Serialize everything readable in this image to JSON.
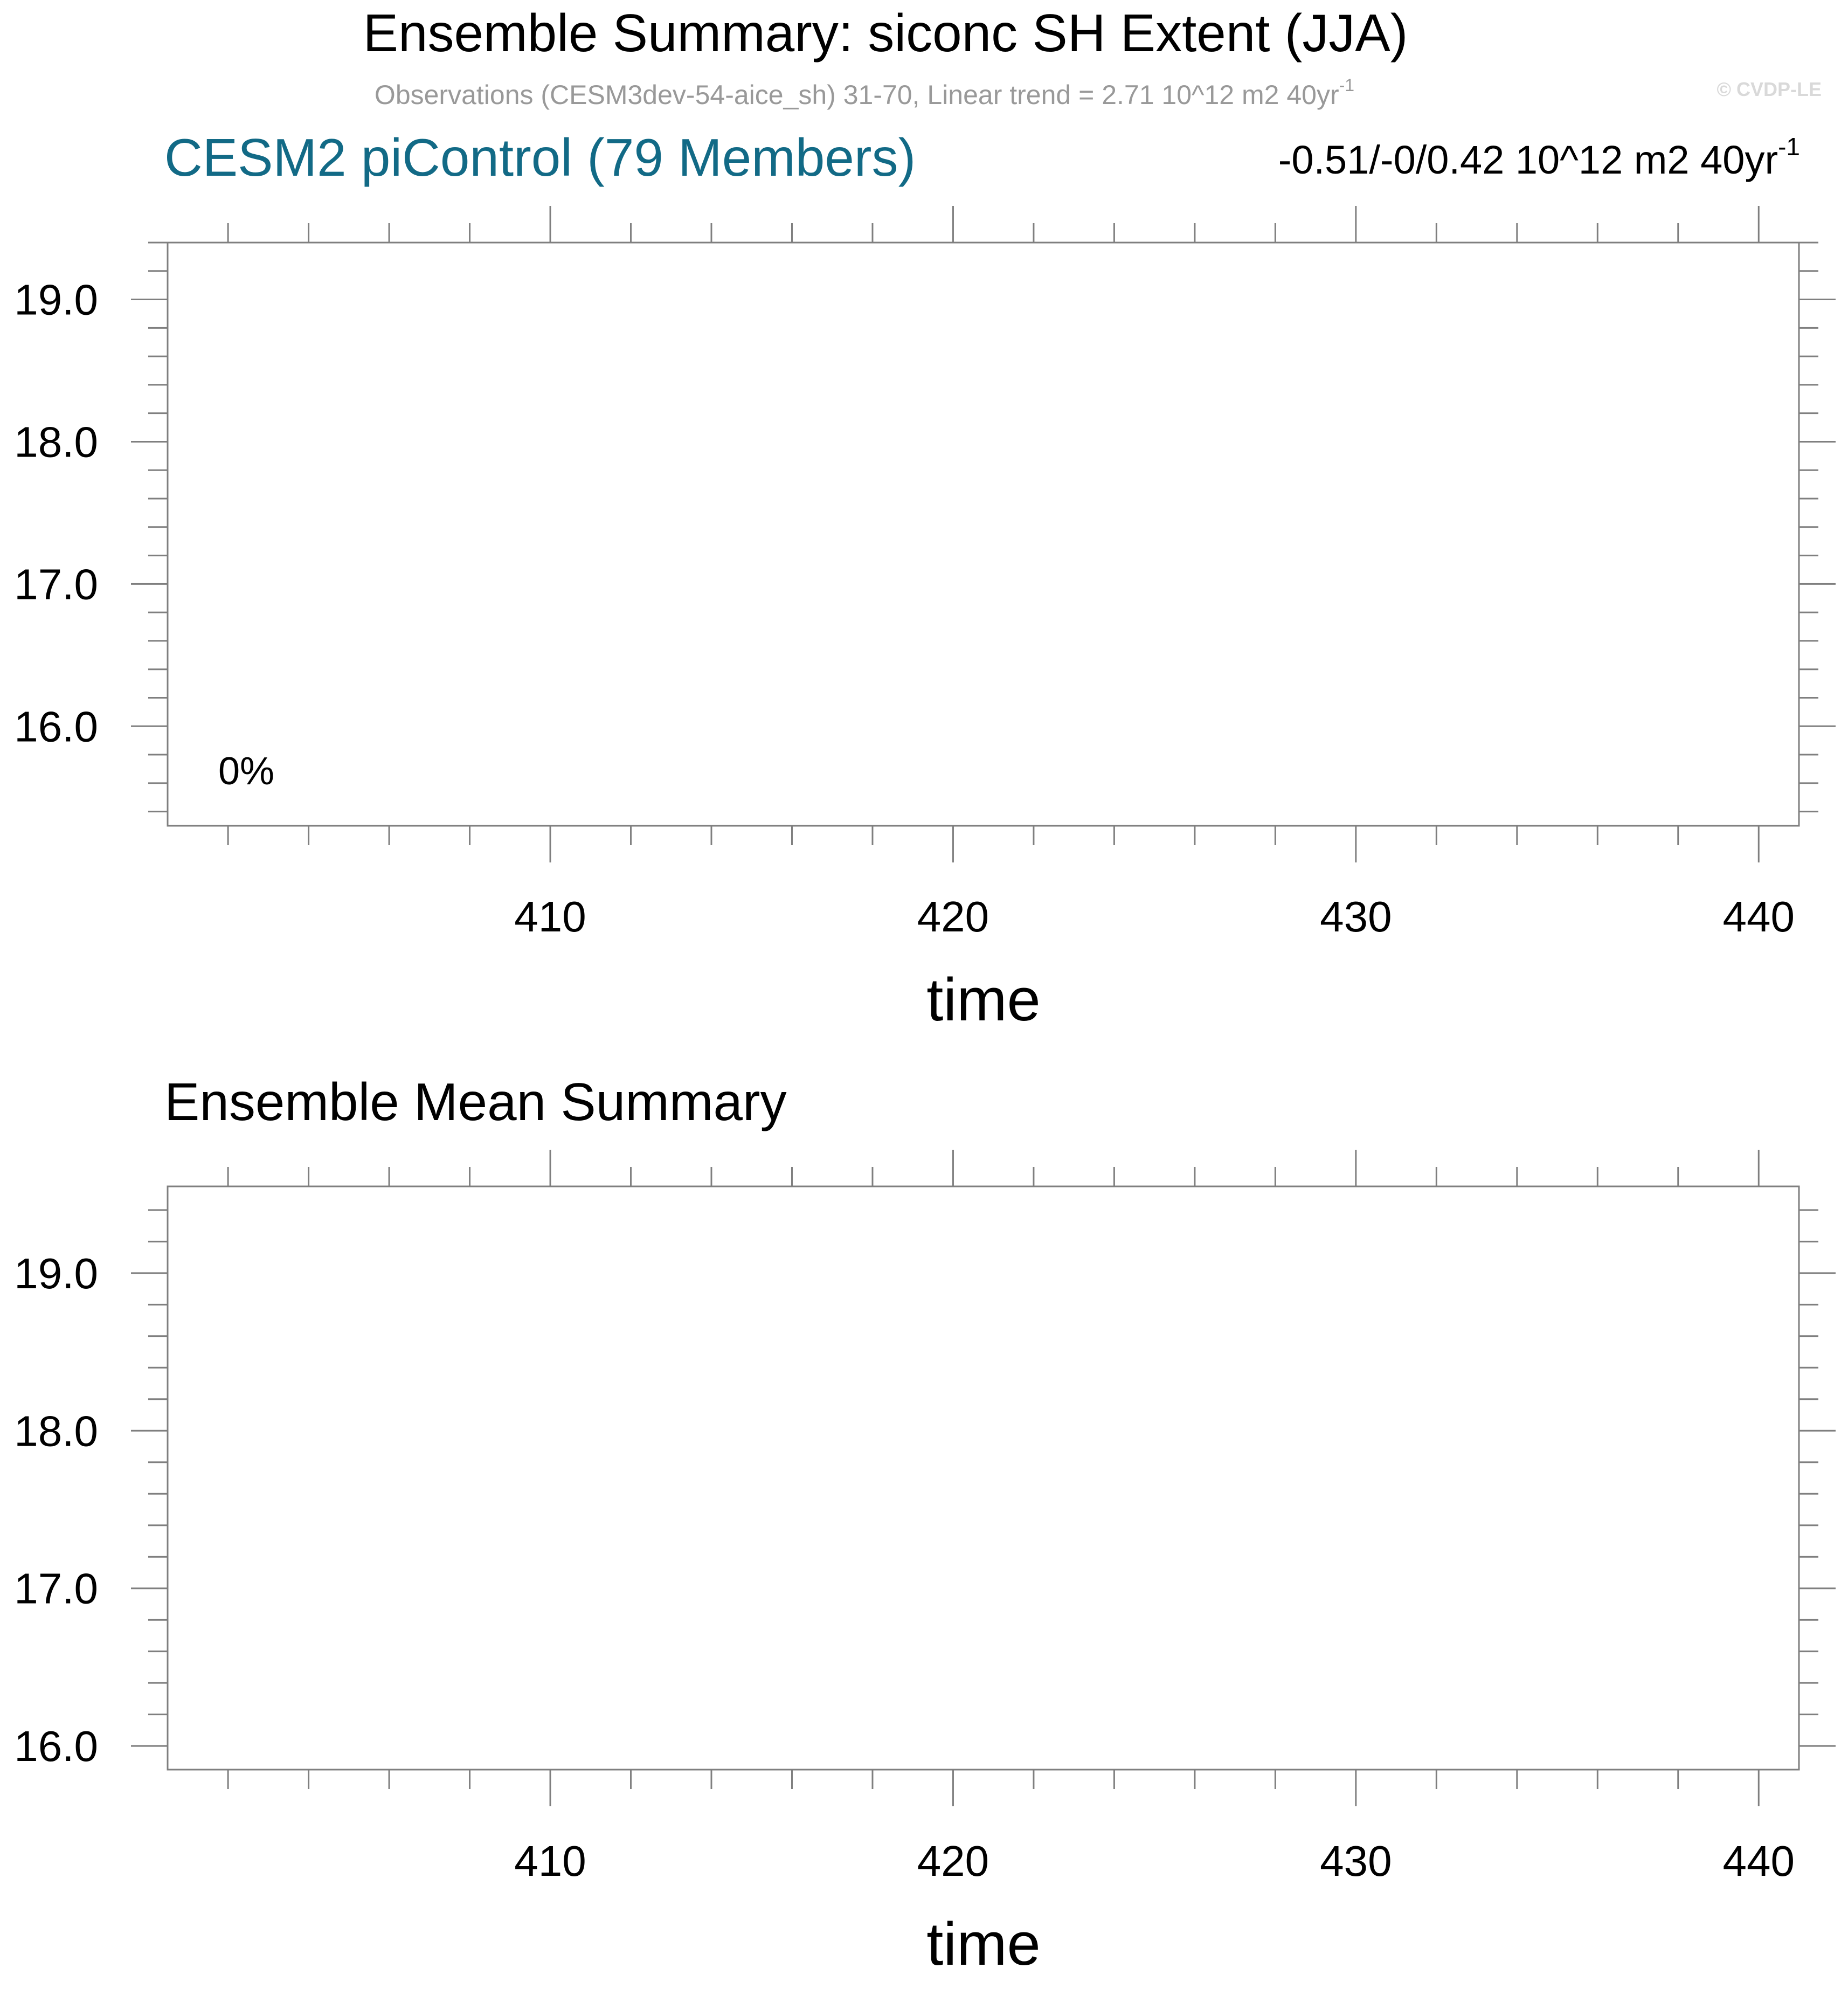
{
  "header": {
    "title": "Ensemble Summary: siconc SH Extent (JJA)",
    "subtitle_main": "Observations (CESM3dev-54-aice_sh) 31-70, Linear trend = 2.71 10^12 m2 40yr",
    "subtitle_sup": "-1",
    "watermark": "© CVDP-LE"
  },
  "colors": {
    "axis": "#7f7f7f",
    "text": "#000000",
    "panel1_title": "#126a86",
    "subtitle": "#999999",
    "watermark": "#d9d9d9"
  },
  "chart_data": [
    {
      "type": "line",
      "title": "CESM2 piControl (79 Members)",
      "trend_main": "-0.51/-0/0.42 10^12 m2 40yr",
      "trend_sup": "-1",
      "annotation": "0%",
      "xlabel": "time",
      "ylabel": "",
      "xlim": [
        400.5,
        441.0
      ],
      "ylim": [
        15.3,
        19.4
      ],
      "x_major_ticks": [
        410,
        420,
        430,
        440
      ],
      "x_tick_labels": [
        "410",
        "420",
        "430",
        "440"
      ],
      "x_minor_step": 2,
      "y_major_ticks": [
        16.0,
        17.0,
        18.0,
        19.0
      ],
      "y_tick_labels": [
        "16.0",
        "17.0",
        "18.0",
        "19.0"
      ],
      "y_minor_step": 0.2,
      "series": []
    },
    {
      "type": "line",
      "title": "Ensemble Mean Summary",
      "xlabel": "time",
      "ylabel": "",
      "xlim": [
        400.5,
        441.0
      ],
      "ylim": [
        15.85,
        19.55
      ],
      "x_major_ticks": [
        410,
        420,
        430,
        440
      ],
      "x_tick_labels": [
        "410",
        "420",
        "430",
        "440"
      ],
      "x_minor_step": 2,
      "y_major_ticks": [
        16.0,
        17.0,
        18.0,
        19.0
      ],
      "y_tick_labels": [
        "16.0",
        "17.0",
        "18.0",
        "19.0"
      ],
      "y_minor_step": 0.2,
      "series": []
    }
  ]
}
